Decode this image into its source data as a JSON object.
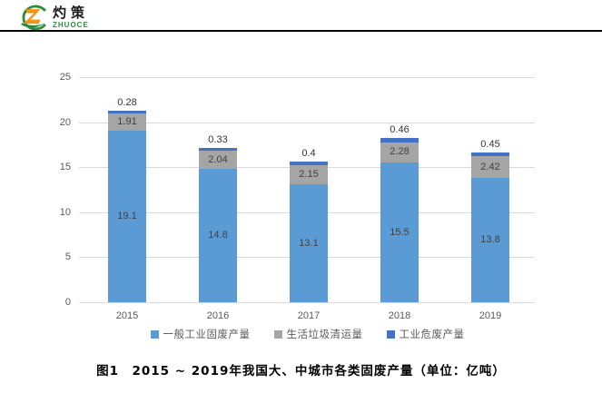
{
  "header": {
    "logo_cn": "灼策",
    "logo_en": "ZHUOCE"
  },
  "caption": "图1　2015 ~ 2019年我国大、中城市各类固废产量（单位：亿吨）",
  "colors": {
    "grid": "#D9D9D9",
    "axis_text": "#595959",
    "segment_label": "#404040",
    "top_label": "#333333",
    "header_rule": "#000000",
    "logo_green": "#2e8b3d",
    "logo_orange": "#F29313"
  },
  "chart_data": {
    "type": "bar",
    "stacked": true,
    "title": "",
    "xlabel": "",
    "ylabel": "",
    "categories": [
      "2015",
      "2016",
      "2017",
      "2018",
      "2019"
    ],
    "series": [
      {
        "name": "一般工业固废产量",
        "color": "#5B9BD5",
        "values": [
          19.1,
          14.8,
          13.1,
          15.5,
          13.8
        ],
        "label_position": "inside"
      },
      {
        "name": "生活垃圾清运量",
        "color": "#A5A5A5",
        "values": [
          1.91,
          2.04,
          2.15,
          2.28,
          2.42
        ],
        "label_position": "inside"
      },
      {
        "name": "工业危废产量",
        "color": "#4472C4",
        "values": [
          0.28,
          0.33,
          0.4,
          0.46,
          0.45
        ],
        "label_position": "above"
      }
    ],
    "ylim": [
      0,
      25
    ],
    "ytick_step": 5,
    "grid": true,
    "legend_position": "bottom"
  }
}
